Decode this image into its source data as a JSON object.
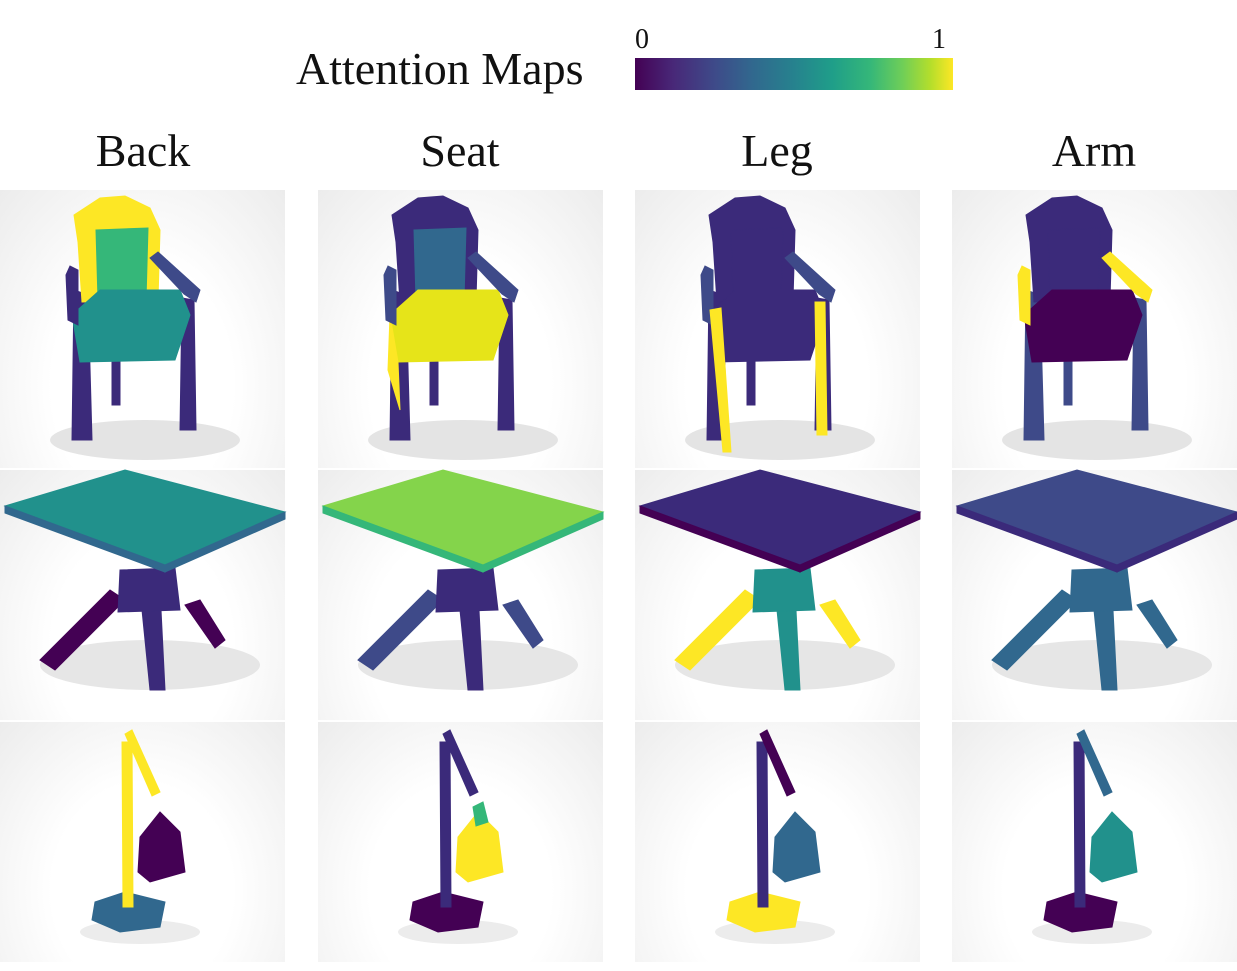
{
  "header": {
    "title": "Attention Maps",
    "colorbar": {
      "min_label": "0",
      "max_label": "1",
      "colormap": "viridis"
    }
  },
  "columns": [
    {
      "label": "Back"
    },
    {
      "label": "Seat"
    },
    {
      "label": "Leg"
    },
    {
      "label": "Arm"
    }
  ],
  "rows": [
    {
      "object": "chair"
    },
    {
      "object": "table"
    },
    {
      "object": "lamp"
    }
  ],
  "colors": {
    "c0": "#440154",
    "c1": "#3b2a7a",
    "c2": "#3e4a89",
    "c3": "#31688e",
    "c4": "#21918c",
    "c5": "#35b779",
    "c6": "#84d44b",
    "c7": "#fde725",
    "c8": "#e6e419"
  }
}
